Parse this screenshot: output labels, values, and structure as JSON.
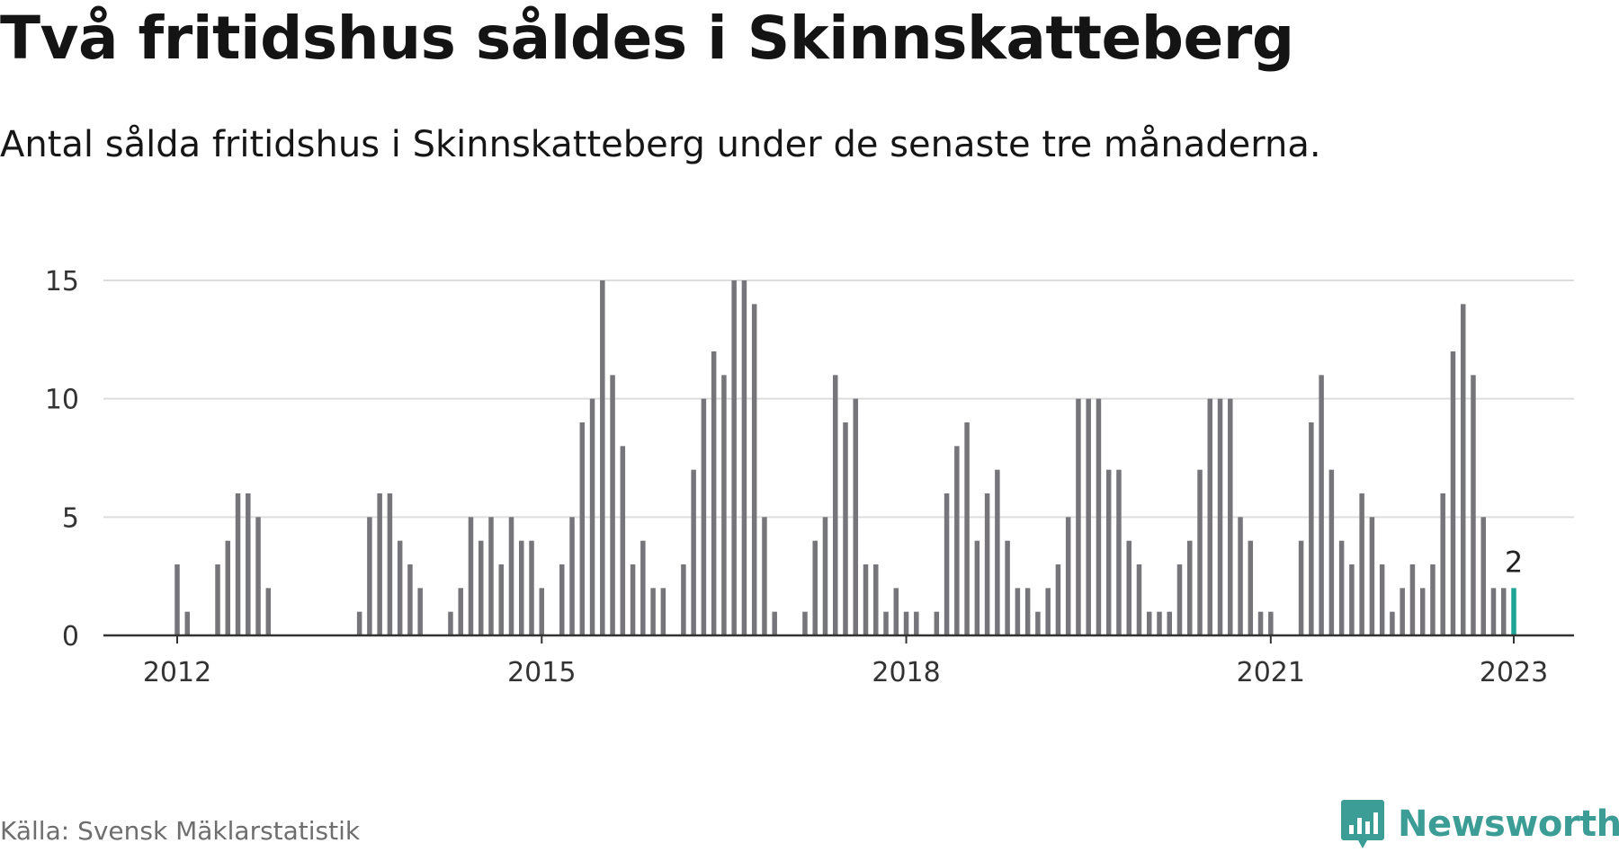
{
  "title": "Två fritidshus såldes i Skinnskatteberg",
  "subtitle": "Antal sålda fritidshus i Skinnskatteberg under de senaste tre månaderna.",
  "source": "Källa: Svensk Mäklarstatistik",
  "brand": {
    "name": "Newsworthy",
    "icon": "newsworthy-chart-icon",
    "color": "#3b9d95"
  },
  "colors": {
    "bar": "#76767a",
    "highlight": "#1fa595",
    "grid": "#dddddd",
    "axis": "#333333"
  },
  "chart_data": {
    "type": "bar",
    "title": "",
    "xlabel": "",
    "ylabel": "",
    "ylim": [
      0,
      15
    ],
    "yticks": [
      "0",
      "5",
      "10",
      "15"
    ],
    "xticks": [
      "2012",
      "2015",
      "2018",
      "2021",
      "2023"
    ],
    "grid": true,
    "x": [
      "2012-01",
      "2012-02",
      "2012-03",
      "2012-04",
      "2012-05",
      "2012-06",
      "2012-07",
      "2012-08",
      "2012-09",
      "2012-10",
      "2012-11",
      "2012-12",
      "2013-01",
      "2013-02",
      "2013-03",
      "2013-04",
      "2013-05",
      "2013-06",
      "2013-07",
      "2013-08",
      "2013-09",
      "2013-10",
      "2013-11",
      "2013-12",
      "2014-01",
      "2014-02",
      "2014-03",
      "2014-04",
      "2014-05",
      "2014-06",
      "2014-07",
      "2014-08",
      "2014-09",
      "2014-10",
      "2014-11",
      "2014-12",
      "2015-01",
      "2015-02",
      "2015-03",
      "2015-04",
      "2015-05",
      "2015-06",
      "2015-07",
      "2015-08",
      "2015-09",
      "2015-10",
      "2015-11",
      "2015-12",
      "2016-01",
      "2016-02",
      "2016-03",
      "2016-04",
      "2016-05",
      "2016-06",
      "2016-07",
      "2016-08",
      "2016-09",
      "2016-10",
      "2016-11",
      "2016-12",
      "2017-01",
      "2017-02",
      "2017-03",
      "2017-04",
      "2017-05",
      "2017-06",
      "2017-07",
      "2017-08",
      "2017-09",
      "2017-10",
      "2017-11",
      "2017-12",
      "2018-01",
      "2018-02",
      "2018-03",
      "2018-04",
      "2018-05",
      "2018-06",
      "2018-07",
      "2018-08",
      "2018-09",
      "2018-10",
      "2018-11",
      "2018-12",
      "2019-01",
      "2019-02",
      "2019-03",
      "2019-04",
      "2019-05",
      "2019-06",
      "2019-07",
      "2019-08",
      "2019-09",
      "2019-10",
      "2019-11",
      "2019-12",
      "2020-01",
      "2020-02",
      "2020-03",
      "2020-04",
      "2020-05",
      "2020-06",
      "2020-07",
      "2020-08",
      "2020-09",
      "2020-10",
      "2020-11",
      "2020-12",
      "2021-01",
      "2021-02",
      "2021-03",
      "2021-04",
      "2021-05",
      "2021-06",
      "2021-07",
      "2021-08",
      "2021-09",
      "2021-10",
      "2021-11",
      "2021-12",
      "2022-01",
      "2022-02",
      "2022-03",
      "2022-04",
      "2022-05",
      "2022-06",
      "2022-07",
      "2022-08",
      "2022-09",
      "2022-10",
      "2022-11",
      "2022-12",
      "2023-01"
    ],
    "values": [
      3,
      1,
      0,
      0,
      3,
      4,
      6,
      6,
      5,
      2,
      0,
      0,
      0,
      0,
      0,
      0,
      0,
      0,
      1,
      5,
      6,
      6,
      4,
      3,
      2,
      0,
      0,
      1,
      2,
      5,
      4,
      5,
      3,
      5,
      4,
      4,
      2,
      0,
      3,
      5,
      9,
      10,
      15,
      11,
      8,
      3,
      4,
      2,
      2,
      0,
      3,
      7,
      10,
      12,
      11,
      15,
      15,
      14,
      5,
      1,
      0,
      0,
      1,
      4,
      5,
      11,
      9,
      10,
      3,
      3,
      1,
      2,
      1,
      1,
      0,
      1,
      6,
      8,
      9,
      4,
      6,
      7,
      4,
      2,
      2,
      1,
      2,
      3,
      5,
      10,
      10,
      10,
      7,
      7,
      4,
      3,
      1,
      1,
      1,
      3,
      4,
      7,
      10,
      10,
      10,
      5,
      4,
      1,
      1,
      0,
      0,
      4,
      9,
      11,
      7,
      4,
      3,
      6,
      5,
      3,
      1,
      2,
      3,
      2,
      3,
      6,
      12,
      14,
      11,
      5,
      2,
      2,
      2
    ],
    "highlight_index": 132,
    "annotation": "2"
  }
}
